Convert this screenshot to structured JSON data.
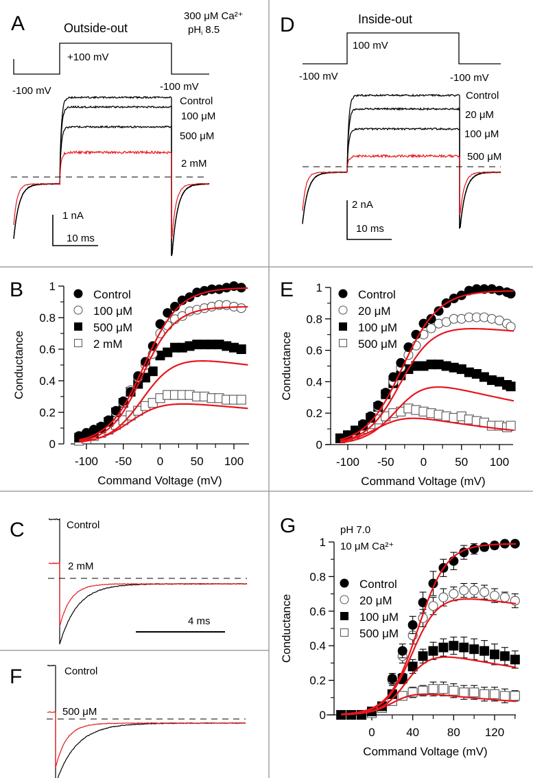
{
  "figure": {
    "dividers": true,
    "colors": {
      "trace_control": "#000000",
      "trace_blocker": "#e8141b",
      "fit": "#e8141b",
      "divider": "#a0a0a0",
      "open_marker_stroke": "#555555"
    }
  },
  "chart_data": [
    {
      "panel": "A",
      "type": "line",
      "title": "Outside-out",
      "conditions": [
        "300 μM Ca²⁺",
        "pHi 8.5"
      ],
      "protocol": {
        "holding_label_left": "-100 mV",
        "step_label": "+100 mV",
        "holding_label_right": "-100 mV"
      },
      "traces": [
        {
          "name": "Control",
          "steady_state_relative": 1.0,
          "color": "#000000"
        },
        {
          "name": "100 μM",
          "steady_state_relative": 0.88,
          "color": "#000000"
        },
        {
          "name": "500 μM",
          "steady_state_relative": 0.63,
          "color": "#000000"
        },
        {
          "name": "2 mM",
          "steady_state_relative": 0.31,
          "color": "#e8141b"
        }
      ],
      "scale_bar": {
        "current": "1 nA",
        "time": "10 ms"
      },
      "zero_line": "dashed"
    },
    {
      "panel": "D",
      "type": "line",
      "title": "Inside-out",
      "protocol": {
        "holding_label_left": "-100 mV",
        "step_label": "100 mV",
        "holding_label_right": "-100 mV"
      },
      "traces": [
        {
          "name": "Control",
          "steady_state_relative": 1.0,
          "color": "#000000"
        },
        {
          "name": "20 μM",
          "steady_state_relative": 0.81,
          "color": "#000000"
        },
        {
          "name": "100 μM",
          "steady_state_relative": 0.53,
          "color": "#000000"
        },
        {
          "name": "500 μM",
          "steady_state_relative": 0.15,
          "color": "#e8141b"
        }
      ],
      "scale_bar": {
        "current": "2 nA",
        "time": "10 ms"
      },
      "zero_line": "dashed"
    },
    {
      "panel": "B",
      "type": "scatter",
      "xlabel": "Command Voltage (mV)",
      "ylabel": "Conductance",
      "xlim": [
        -115,
        120
      ],
      "ylim": [
        0,
        1
      ],
      "xticks": [
        -100,
        -50,
        0,
        50,
        100
      ],
      "yticks": [
        0,
        0.2,
        0.4,
        0.6,
        0.8,
        1
      ],
      "ytick_labels": [
        "0",
        "0.2",
        "0.4",
        "0.6",
        "0.8",
        "1"
      ],
      "legend": "top-left",
      "x": [
        -110,
        -100,
        -90,
        -80,
        -70,
        -60,
        -50,
        -40,
        -30,
        -20,
        -10,
        0,
        10,
        20,
        30,
        40,
        50,
        60,
        70,
        80,
        90,
        100,
        110
      ],
      "series": [
        {
          "name": "Control",
          "marker": "filled-circle",
          "values": [
            0.05,
            0.07,
            0.09,
            0.11,
            0.15,
            0.21,
            0.27,
            0.33,
            0.43,
            0.52,
            0.62,
            0.76,
            0.83,
            0.87,
            0.91,
            0.93,
            0.96,
            0.97,
            0.98,
            0.98,
            0.99,
            1.0,
            0.99
          ],
          "fit": {
            "type": "boltzmann",
            "gmax": 0.99,
            "vhalf": -22,
            "k": 24,
            "decline": 0
          }
        },
        {
          "name": "100 μM",
          "marker": "open-circle",
          "values": [
            0.05,
            0.07,
            0.09,
            0.11,
            0.15,
            0.2,
            0.26,
            0.34,
            0.42,
            0.5,
            0.57,
            0.7,
            0.75,
            0.79,
            0.81,
            0.84,
            0.85,
            0.86,
            0.87,
            0.88,
            0.88,
            0.87,
            0.86
          ],
          "fit": {
            "type": "boltzmann",
            "gmax": 0.87,
            "vhalf": -24,
            "k": 22,
            "decline": 0
          }
        },
        {
          "name": "500 μM",
          "marker": "filled-square",
          "values": [
            0.04,
            0.05,
            0.07,
            0.1,
            0.14,
            0.2,
            0.26,
            0.33,
            0.38,
            0.42,
            0.46,
            0.56,
            0.58,
            0.61,
            0.61,
            0.62,
            0.63,
            0.63,
            0.63,
            0.63,
            0.62,
            0.61,
            0.6
          ],
          "fit": {
            "type": "boltzmann-block",
            "gmax": 0.66,
            "vhalf": -22,
            "k": 22,
            "decline": 0.0012
          }
        },
        {
          "name": "2 mM",
          "marker": "open-square",
          "values": [
            0.02,
            0.03,
            0.05,
            0.07,
            0.09,
            0.12,
            0.15,
            0.18,
            0.21,
            0.24,
            0.26,
            0.29,
            0.31,
            0.31,
            0.31,
            0.31,
            0.3,
            0.3,
            0.29,
            0.29,
            0.28,
            0.28,
            0.28
          ],
          "fit": {
            "type": "boltzmann-block",
            "gmax": 0.34,
            "vhalf": -38,
            "k": 22,
            "decline": 0.0018
          }
        }
      ]
    },
    {
      "panel": "E",
      "type": "scatter",
      "xlabel": "Command Voltage (mV)",
      "ylabel": "Conductance",
      "xlim": [
        -115,
        120
      ],
      "ylim": [
        0,
        1
      ],
      "xticks": [
        -100,
        -50,
        0,
        50,
        100
      ],
      "yticks": [
        0,
        0.2,
        0.4,
        0.6,
        0.8,
        1
      ],
      "ytick_labels": [
        "0",
        "0.2",
        "0.4",
        "0.6",
        "0.8",
        "1"
      ],
      "legend": "top-left",
      "x": [
        -110,
        -100,
        -90,
        -80,
        -70,
        -60,
        -50,
        -40,
        -30,
        -20,
        -10,
        0,
        10,
        20,
        30,
        40,
        50,
        60,
        70,
        80,
        90,
        100,
        110,
        115
      ],
      "series": [
        {
          "name": "Control",
          "marker": "filled-circle",
          "values": [
            0.04,
            0.06,
            0.09,
            0.13,
            0.18,
            0.25,
            0.33,
            0.43,
            0.52,
            0.62,
            0.7,
            0.77,
            0.8,
            0.85,
            0.9,
            0.93,
            0.95,
            0.98,
            0.99,
            0.99,
            0.99,
            0.98,
            0.97,
            0.96
          ],
          "fit": {
            "type": "boltzmann",
            "gmax": 0.98,
            "vhalf": -28,
            "k": 24,
            "decline": 0
          }
        },
        {
          "name": "20 μM",
          "marker": "open-circle",
          "values": [
            0.04,
            0.06,
            0.09,
            0.13,
            0.18,
            0.24,
            0.33,
            0.4,
            0.49,
            0.57,
            0.63,
            0.7,
            0.74,
            0.77,
            0.78,
            0.8,
            0.8,
            0.81,
            0.81,
            0.81,
            0.8,
            0.79,
            0.77,
            0.75
          ],
          "fit": {
            "type": "boltzmann-block",
            "gmax": 0.83,
            "vhalf": -30,
            "k": 22,
            "decline": 0.0006
          }
        },
        {
          "name": "100 μM",
          "marker": "filled-square",
          "values": [
            0.04,
            0.06,
            0.09,
            0.12,
            0.17,
            0.24,
            0.32,
            0.39,
            0.44,
            0.48,
            0.5,
            0.5,
            0.51,
            0.51,
            0.5,
            0.49,
            0.48,
            0.46,
            0.45,
            0.43,
            0.41,
            0.4,
            0.38,
            0.37
          ],
          "fit": {
            "type": "boltzmann-block",
            "gmax": 0.62,
            "vhalf": -32,
            "k": 20,
            "decline": 0.0035
          }
        },
        {
          "name": "500 μM",
          "marker": "open-square",
          "values": [
            0.04,
            0.05,
            0.07,
            0.1,
            0.13,
            0.16,
            0.18,
            0.2,
            0.21,
            0.23,
            0.22,
            0.21,
            0.2,
            0.19,
            0.18,
            0.17,
            0.18,
            0.16,
            0.15,
            0.14,
            0.12,
            0.12,
            0.11,
            0.12
          ],
          "fit": {
            "type": "boltzmann-block",
            "gmax": 0.32,
            "vhalf": -55,
            "k": 20,
            "decline": 0.0055
          }
        }
      ]
    },
    {
      "panel": "C",
      "type": "line",
      "traces": [
        {
          "name": "Control",
          "color": "#000000",
          "peak_tail_relative": 1.0
        },
        {
          "name": "2 mM",
          "color": "#e8141b",
          "peak_tail_relative": 0.73
        }
      ],
      "scale_bar": {
        "time": "4 ms"
      },
      "zero_line": "dashed"
    },
    {
      "panel": "F",
      "type": "line",
      "traces": [
        {
          "name": "Control",
          "color": "#000000",
          "peak_tail_relative": 1.0
        },
        {
          "name": "500 μM",
          "color": "#e8141b",
          "peak_tail_relative": 0.75
        }
      ],
      "zero_line": "dashed"
    },
    {
      "panel": "G",
      "type": "scatter",
      "conditions": [
        "pH 7.0",
        "10 μM Ca²⁺"
      ],
      "xlabel": "Command Voltage (mV)",
      "ylabel": "Conductance",
      "xlim": [
        -35,
        142
      ],
      "ylim": [
        0,
        1
      ],
      "xticks": [
        0,
        40,
        80,
        120
      ],
      "xminor": [
        -20,
        20,
        60,
        100,
        140
      ],
      "yticks": [
        0,
        0.2,
        0.4,
        0.6,
        0.8,
        1
      ],
      "ytick_labels": [
        "0",
        "0.2",
        "0.4",
        "0.6",
        "0.8",
        "1"
      ],
      "legend": "middle-left",
      "x": [
        -30,
        -20,
        -10,
        0,
        10,
        20,
        30,
        40,
        50,
        60,
        70,
        80,
        90,
        100,
        110,
        120,
        130,
        140
      ],
      "series": [
        {
          "name": "Control",
          "marker": "filled-circle",
          "values": [
            0.0,
            0.0,
            0.0,
            0.02,
            0.05,
            0.21,
            0.37,
            0.52,
            0.65,
            0.76,
            0.85,
            0.89,
            0.94,
            0.96,
            0.97,
            0.98,
            0.99,
            0.99
          ],
          "errors": [
            0,
            0,
            0,
            0.01,
            0.02,
            0.03,
            0.04,
            0.05,
            0.06,
            0.07,
            0.05,
            0.05,
            0.04,
            0.03,
            0.02,
            0.02,
            0.01,
            0.01
          ],
          "fit": {
            "type": "boltzmann",
            "gmax": 0.99,
            "vhalf": 45,
            "k": 14,
            "decline": 0
          }
        },
        {
          "name": "20 μM",
          "marker": "open-circle",
          "values": [
            0.0,
            0.0,
            0.0,
            0.02,
            0.05,
            0.2,
            0.34,
            0.46,
            0.56,
            0.63,
            0.68,
            0.7,
            0.72,
            0.72,
            0.71,
            0.69,
            0.68,
            0.66
          ],
          "errors": [
            0,
            0,
            0,
            0.01,
            0.02,
            0.03,
            0.04,
            0.05,
            0.05,
            0.05,
            0.05,
            0.04,
            0.04,
            0.04,
            0.04,
            0.04,
            0.03,
            0.04
          ],
          "fit": {
            "type": "boltzmann-block",
            "gmax": 0.79,
            "vhalf": 40,
            "k": 13,
            "decline": 0.0012
          }
        },
        {
          "name": "100 μM",
          "marker": "filled-square",
          "values": [
            0.0,
            0.0,
            0.0,
            0.02,
            0.05,
            0.12,
            0.21,
            0.28,
            0.34,
            0.37,
            0.39,
            0.4,
            0.39,
            0.38,
            0.37,
            0.35,
            0.34,
            0.32
          ],
          "errors": [
            0,
            0,
            0,
            0.01,
            0.02,
            0.02,
            0.03,
            0.04,
            0.04,
            0.05,
            0.05,
            0.05,
            0.06,
            0.06,
            0.06,
            0.06,
            0.05,
            0.05
          ],
          "fit": {
            "type": "boltzmann-block",
            "gmax": 0.5,
            "vhalf": 35,
            "k": 12,
            "decline": 0.0035
          }
        },
        {
          "name": "500 μM",
          "marker": "open-square",
          "values": [
            0.0,
            0.0,
            0.0,
            0.01,
            0.04,
            0.08,
            0.11,
            0.13,
            0.14,
            0.15,
            0.15,
            0.14,
            0.13,
            0.13,
            0.12,
            0.12,
            0.11,
            0.11
          ],
          "errors": [
            0,
            0,
            0,
            0.01,
            0.01,
            0.02,
            0.02,
            0.03,
            0.03,
            0.04,
            0.04,
            0.04,
            0.04,
            0.04,
            0.04,
            0.04,
            0.04,
            0.03
          ],
          "fit": {
            "type": "boltzmann-block",
            "gmax": 0.2,
            "vhalf": 22,
            "k": 11,
            "decline": 0.0055
          }
        }
      ]
    }
  ],
  "labels": {
    "A": {
      "letter": "A",
      "title": "Outside-out",
      "cond1": "300 μM Ca²⁺",
      "cond2a": "pH",
      "cond2sub": "i",
      "cond2b": " 8.5",
      "step": "+100 mV",
      "hold_left": "-100 mV",
      "hold_right": "-100 mV",
      "t0": "Control",
      "t1": "100 μM",
      "t2": "500 μM",
      "t3": "2 mM",
      "sb_i": "1 nA",
      "sb_t": "10 ms"
    },
    "D": {
      "letter": "D",
      "title": "Inside-out",
      "step": "100 mV",
      "hold_left": "-100 mV",
      "hold_right": "-100 mV",
      "t0": "Control",
      "t1": "20 μM",
      "t2": "100 μM",
      "t3": "500 μM",
      "sb_i": "2 nA",
      "sb_t": "10 ms"
    },
    "B": {
      "letter": "B"
    },
    "E": {
      "letter": "E"
    },
    "C": {
      "letter": "C",
      "t0": "Control",
      "t1": "2 mM",
      "sb_t": "4 ms"
    },
    "F": {
      "letter": "F",
      "t0": "Control",
      "t1": "500 μM"
    },
    "G": {
      "letter": "G",
      "cond1": "pH 7.0",
      "cond2": "10 μM Ca²⁺"
    }
  }
}
